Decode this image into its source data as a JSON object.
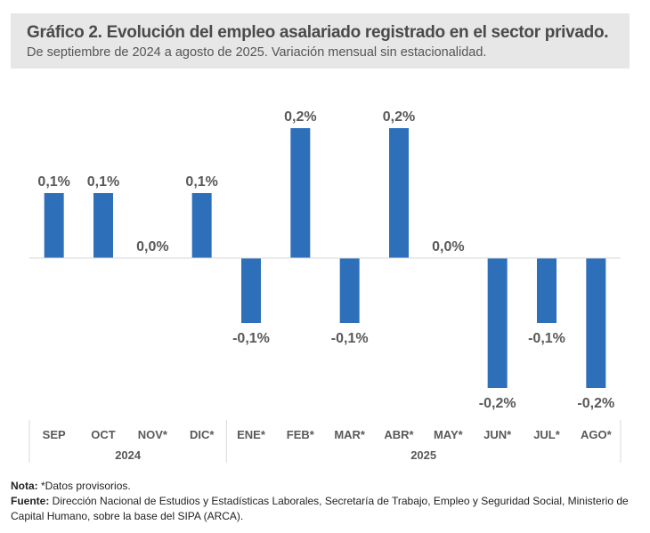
{
  "header": {
    "title": "Gráfico 2. Evolución del empleo asalariado registrado en el sector privado.",
    "subtitle": "De septiembre de 2024 a agosto de 2025. Variación mensual sin estacionalidad."
  },
  "chart_data": {
    "type": "bar",
    "title": "Gráfico 2. Evolución del empleo asalariado registrado en el sector privado.",
    "subtitle": "De septiembre de 2024 a agosto de 2025. Variación mensual sin estacionalidad.",
    "categories": [
      "SEP",
      "OCT",
      "NOV*",
      "DIC*",
      "ENE*",
      "FEB*",
      "MAR*",
      "ABR*",
      "MAY*",
      "JUN*",
      "JUL*",
      "AGO*"
    ],
    "groups": [
      {
        "label": "2024",
        "count": 4
      },
      {
        "label": "2025",
        "count": 8
      }
    ],
    "values": [
      0.1,
      0.1,
      0.0,
      0.1,
      -0.1,
      0.2,
      -0.1,
      0.2,
      0.0,
      -0.2,
      -0.1,
      -0.2
    ],
    "data_labels": [
      "0,1%",
      "0,1%",
      "0,0%",
      "0,1%",
      "-0,1%",
      "0,2%",
      "-0,1%",
      "0,2%",
      "0,0%",
      "-0,2%",
      "-0,1%",
      "-0,2%"
    ],
    "xlabel": "",
    "ylabel": "",
    "ylim": [
      -0.2,
      0.2
    ],
    "grid": false,
    "legend": "none",
    "bar_color": "#2e6fba"
  },
  "notes": {
    "nota_label": "Nota:",
    "nota_text": " *Datos provisorios.",
    "fuente_label": "Fuente:",
    "fuente_text": " Dirección Nacional de Estudios y Estadísticas Laborales, Secretaría de Trabajo, Empleo y Seguridad Social, Ministerio de Capital Humano, sobre la base del SIPA (ARCA)."
  }
}
